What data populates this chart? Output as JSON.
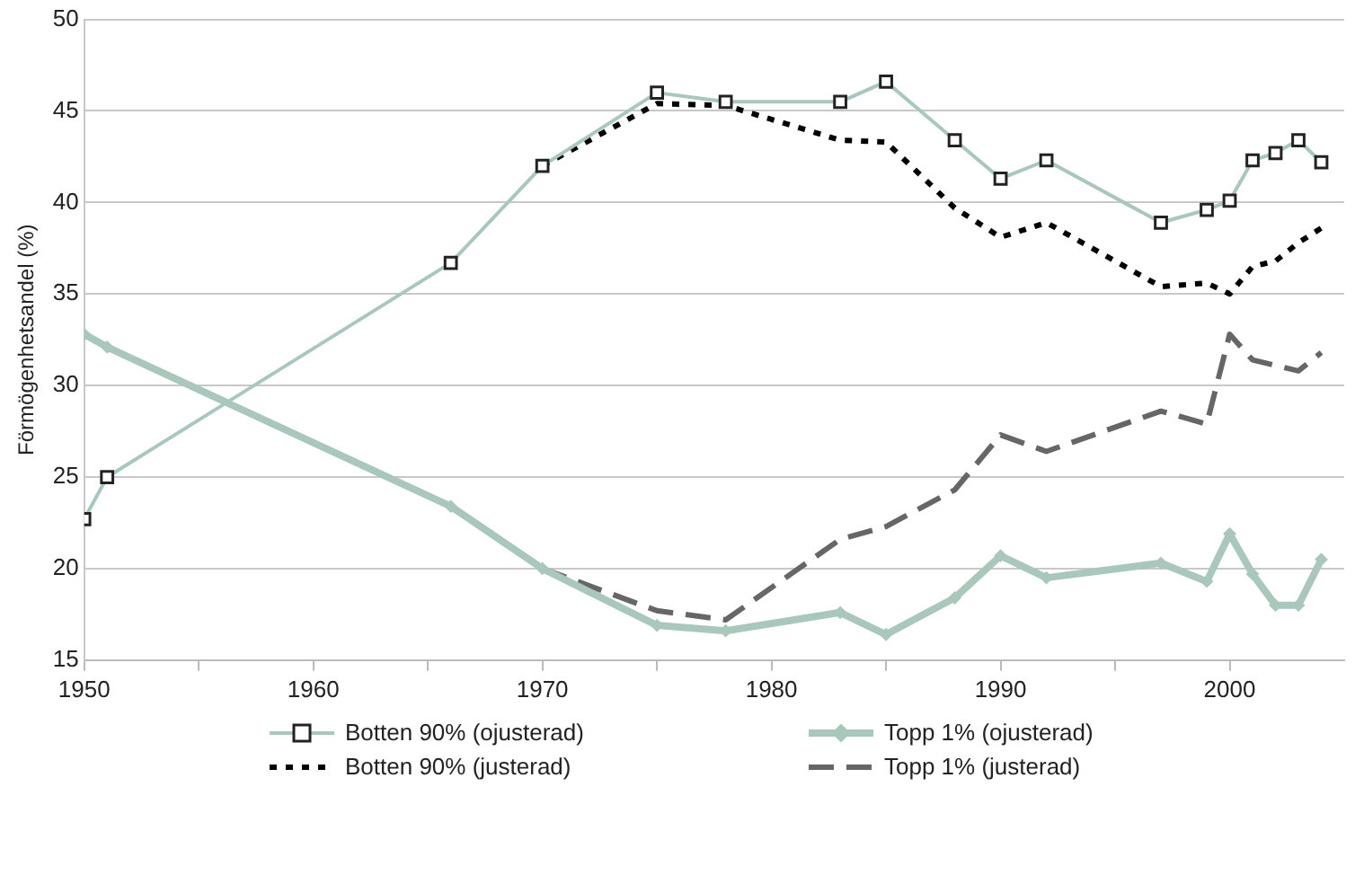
{
  "chart_data": {
    "type": "line",
    "ylabel": "Förmögenhetsandel (%)",
    "xlim": [
      1950,
      2005
    ],
    "xticks": [
      1950,
      {
        "value": 1955,
        "label": null
      },
      1960,
      {
        "value": 1965,
        "label": null
      },
      1970,
      {
        "value": 1975,
        "label": null
      },
      1980,
      {
        "value": 1985,
        "label": null
      },
      1990,
      {
        "value": 1995,
        "label": null
      },
      2000
    ],
    "ylim": [
      15,
      50
    ],
    "yticks": [
      15,
      20,
      25,
      30,
      35,
      40,
      45,
      50
    ],
    "grid": "y",
    "legend": "bottom",
    "series": [
      {
        "name": "Botten 90% (ojusterad)",
        "color": "#a9c8bb",
        "marker": "square",
        "line_style": "solid",
        "x": [
          1950,
          1951,
          1966,
          1970,
          1975,
          1978,
          1983,
          1985,
          1988,
          1990,
          1992,
          1997,
          1999,
          2000,
          2001,
          2002,
          2003,
          2004
        ],
        "values": [
          22.7,
          25.0,
          36.7,
          42.0,
          46.0,
          45.5,
          45.5,
          46.6,
          43.4,
          41.3,
          42.3,
          38.9,
          39.6,
          40.1,
          42.3,
          42.7,
          43.4,
          42.2
        ]
      },
      {
        "name": "Topp 1% (ojusterad)",
        "color": "#a9c8bb",
        "marker": "diamond",
        "line_style": "solid",
        "x": [
          1950,
          1951,
          1966,
          1970,
          1975,
          1978,
          1983,
          1985,
          1988,
          1990,
          1992,
          1997,
          1999,
          2000,
          2001,
          2002,
          2003,
          2004
        ],
        "values": [
          32.8,
          32.1,
          23.4,
          20.0,
          16.9,
          16.6,
          17.6,
          16.4,
          18.4,
          20.7,
          19.5,
          20.3,
          19.3,
          21.9,
          19.7,
          18.0,
          18.0,
          20.5
        ]
      },
      {
        "name": "Botten 90% (justerad)",
        "color": "#000000",
        "marker": "none",
        "line_style": "dotted",
        "x": [
          1970,
          1975,
          1978,
          1983,
          1985,
          1988,
          1990,
          1992,
          1997,
          1999,
          2000,
          2001,
          2002,
          2003,
          2004
        ],
        "values": [
          42.0,
          45.4,
          45.3,
          43.4,
          43.3,
          39.7,
          38.1,
          38.9,
          35.4,
          35.6,
          35.0,
          36.5,
          36.8,
          37.8,
          38.6
        ]
      },
      {
        "name": "Topp 1% (justerad)",
        "color": "#666666",
        "marker": "none",
        "line_style": "dashed",
        "x": [
          1970,
          1975,
          1978,
          1983,
          1985,
          1988,
          1990,
          1992,
          1997,
          1999,
          2000,
          2001,
          2002,
          2003,
          2004
        ],
        "values": [
          20.0,
          17.7,
          17.2,
          21.6,
          22.3,
          24.3,
          27.3,
          26.4,
          28.6,
          27.9,
          32.8,
          31.4,
          31.1,
          30.8,
          31.8
        ]
      }
    ]
  }
}
